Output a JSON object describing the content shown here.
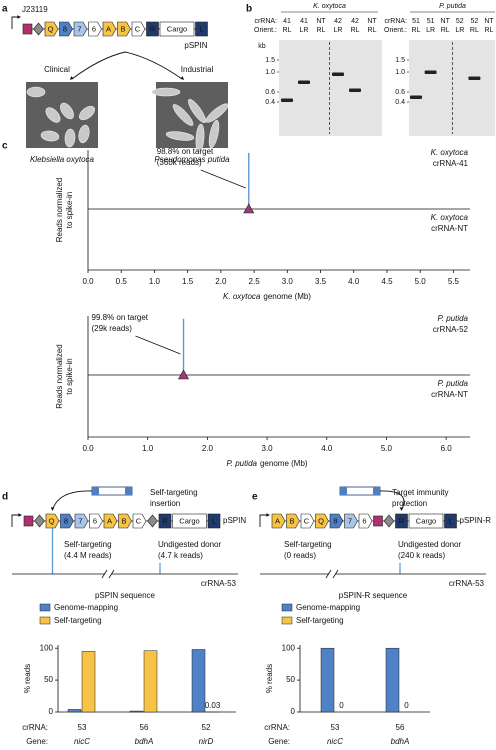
{
  "panel_labels": [
    "a",
    "b",
    "c",
    "d",
    "e"
  ],
  "a": {
    "promoter": "J23119",
    "plasmid": "pSPIN",
    "parts": [
      {
        "shape": "square",
        "color": "#b0306f"
      },
      {
        "shape": "diamond",
        "color": "#8a8a8a"
      },
      {
        "shape": "arrow",
        "label": "Q",
        "color": "#f6c344"
      },
      {
        "shape": "arrow",
        "label": "8",
        "color": "#4f7fc4"
      },
      {
        "shape": "arrow",
        "label": "7",
        "color": "#a8c4e6"
      },
      {
        "shape": "arrow",
        "label": "6",
        "color": "#ffffff"
      },
      {
        "shape": "arrow",
        "label": "A",
        "color": "#f6c344"
      },
      {
        "shape": "arrow",
        "label": "B",
        "color": "#f6c344"
      },
      {
        "shape": "arrow",
        "label": "C",
        "color": "#ffffff"
      },
      {
        "shape": "box",
        "label": "R",
        "color": "#1f3a6b"
      },
      {
        "shape": "box",
        "label": "Cargo",
        "color": "#ffffff"
      },
      {
        "shape": "box",
        "label": "L",
        "color": "#1f3a6b"
      }
    ],
    "hosts": [
      {
        "category": "Clinical",
        "species": "Klebsiella oxytoca"
      },
      {
        "category": "Industrial",
        "species": "Pseudomonas putida"
      }
    ]
  },
  "b": {
    "unit": "kb",
    "row_labels": [
      "crRNA:",
      "Orient.:"
    ],
    "gels": [
      {
        "organism": "K. oxytoca",
        "ladder": [
          "1.5",
          "1.0",
          "0.6",
          "0.4"
        ],
        "crRNA": [
          "41",
          "41",
          "NT",
          "42",
          "42",
          "NT"
        ],
        "orient": [
          "RL",
          "LR",
          "RL",
          "LR",
          "RL",
          "RL"
        ]
      },
      {
        "organism": "P. putida",
        "ladder": [
          "1.5",
          "1.0",
          "0.6",
          "0.4"
        ],
        "crRNA": [
          "51",
          "51",
          "NT",
          "52",
          "52",
          "NT"
        ],
        "orient": [
          "RL",
          "LR",
          "RL",
          "LR",
          "RL",
          "RL"
        ]
      }
    ]
  },
  "chart_data": [
    {
      "type": "stem",
      "ylabel": [
        "Reads normalized",
        "to spike-in"
      ],
      "xlabel": {
        "organism": "K. oxytoca",
        "text": "genome (Mb)"
      },
      "annotation": [
        "98.8% on target",
        "(360k reads)"
      ],
      "tracks": [
        {
          "organism": "K. oxytoca",
          "name": "crRNA-41",
          "x": [
            2.42
          ],
          "values": [
            1
          ]
        },
        {
          "organism": "K. oxytoca",
          "name": "crRNA-NT",
          "x": [],
          "values": []
        }
      ],
      "color": "#5b9bd5",
      "marker_color": "#9b3a75",
      "xlim": [
        0,
        5.75
      ],
      "ylim": [
        0,
        1.05
      ],
      "xticks": [
        {
          "value": 0,
          "label": "0.0"
        },
        0.5,
        {
          "value": 1,
          "label": "1.0"
        },
        1.5,
        {
          "value": 2,
          "label": "2.0"
        },
        2.5,
        {
          "value": 3,
          "label": "3.0"
        },
        3.5,
        {
          "value": 4,
          "label": "4.0"
        },
        4.5,
        {
          "value": 5,
          "label": "5.0"
        },
        5.5
      ]
    },
    {
      "type": "stem",
      "ylabel": [
        "Reads normalized",
        "to spike-in"
      ],
      "xlabel": {
        "organism": "P. putida",
        "text": "genome (Mb)"
      },
      "annotation": [
        "99.8% on target",
        "(29k reads)"
      ],
      "tracks": [
        {
          "organism": "P. putida",
          "name": "crRNA-52",
          "x": [
            1.6
          ],
          "values": [
            1
          ]
        },
        {
          "organism": "P. putida",
          "name": "crRNA-NT",
          "x": [],
          "values": []
        }
      ],
      "color": "#5b9bd5",
      "marker_color": "#9b3a75",
      "xlim": [
        0,
        6.4
      ],
      "ylim": [
        0,
        1.05
      ],
      "xticks": [
        {
          "value": 0,
          "label": "0.0"
        },
        {
          "value": 1,
          "label": "1.0"
        },
        {
          "value": 2,
          "label": "2.0"
        },
        {
          "value": 3,
          "label": "3.0"
        },
        {
          "value": 4,
          "label": "4.0"
        },
        {
          "value": 5,
          "label": "5.0"
        },
        {
          "value": 6,
          "label": "6.0"
        }
      ]
    },
    {
      "type": "bar",
      "ylabel": "% reads",
      "legend": "top-left",
      "category_label": "crRNA:",
      "categories": [
        "53",
        "56",
        "52"
      ],
      "group_label": "Gene:",
      "groups": [
        "nicC",
        "bdhA",
        "nirD"
      ],
      "series": [
        {
          "name": "Genome-mapping",
          "color": "#4f81c7",
          "values": [
            4,
            1.5,
            98
          ]
        },
        {
          "name": "Self-targeting",
          "color": "#f6c344",
          "values": [
            95,
            96,
            0.03
          ]
        }
      ],
      "ylim": [
        0,
        105
      ],
      "yticks": [
        0,
        50,
        100
      ]
    },
    {
      "type": "bar",
      "ylabel": "% reads",
      "legend": "top-left",
      "category_label": "crRNA:",
      "categories": [
        "53",
        "56"
      ],
      "group_label": "Gene:",
      "groups": [
        "nicC",
        "bdhA"
      ],
      "series": [
        {
          "name": "Genome-mapping",
          "color": "#4f81c7",
          "values": [
            100,
            100
          ]
        },
        {
          "name": "Self-targeting",
          "color": "#f6c344",
          "values": [
            0,
            0
          ]
        }
      ],
      "ylim": [
        0,
        105
      ],
      "yticks": [
        0,
        50,
        100
      ]
    }
  ],
  "d": {
    "insertion": [
      "Self-targeting",
      "insertion"
    ],
    "parts": [
      {
        "shape": "square",
        "color": "#b0306f"
      },
      {
        "shape": "diamond",
        "color": "#8a8a8a"
      },
      {
        "shape": "arrow",
        "label": "Q",
        "color": "#f6c344"
      },
      {
        "shape": "arrow",
        "label": "8",
        "color": "#4f7fc4"
      },
      {
        "shape": "arrow",
        "label": "7",
        "color": "#a8c4e6"
      },
      {
        "shape": "arrow",
        "label": "6",
        "color": "#ffffff"
      },
      {
        "shape": "arrow",
        "label": "A",
        "color": "#f6c344"
      },
      {
        "shape": "arrow",
        "label": "B",
        "color": "#f6c344"
      },
      {
        "shape": "arrow",
        "label": "C",
        "color": "#ffffff"
      },
      {
        "shape": "diamond",
        "color": "#8a8a8a"
      },
      {
        "shape": "box",
        "label": "R",
        "color": "#1f3a6b"
      },
      {
        "shape": "box",
        "label": "Cargo",
        "color": "#ffffff"
      },
      {
        "shape": "box",
        "label": "L",
        "color": "#1f3a6b"
      }
    ],
    "plasmid": "pSPIN",
    "self_targeting": [
      "Self-targeting",
      "(4.4 M reads)"
    ],
    "donor": [
      "Undigested donor",
      "(4.7 k reads)"
    ],
    "crRNA": "crRNA-53",
    "sequence": "pSPIN sequence"
  },
  "e": {
    "insertion": [
      "Target immunity",
      "protection"
    ],
    "parts": [
      {
        "shape": "arrow",
        "label": "A",
        "color": "#f6c344"
      },
      {
        "shape": "arrow",
        "label": "B",
        "color": "#f6c344"
      },
      {
        "shape": "arrow",
        "label": "C",
        "color": "#ffffff"
      },
      {
        "shape": "arrow",
        "label": "Q",
        "color": "#f6c344"
      },
      {
        "shape": "arrow",
        "label": "8",
        "color": "#4f7fc4"
      },
      {
        "shape": "arrow",
        "label": "7",
        "color": "#a8c4e6"
      },
      {
        "shape": "arrow",
        "label": "6",
        "color": "#ffffff"
      },
      {
        "shape": "square",
        "color": "#b0306f"
      },
      {
        "shape": "diamond",
        "color": "#8a8a8a"
      },
      {
        "shape": "box",
        "label": "R",
        "color": "#1f3a6b"
      },
      {
        "shape": "box",
        "label": "Cargo",
        "color": "#ffffff"
      },
      {
        "shape": "box",
        "label": "L",
        "color": "#1f3a6b"
      }
    ],
    "plasmid": "pSPIN-R",
    "self_targeting": [
      "Self-targeting",
      "(0 reads)"
    ],
    "donor": [
      "Undigested donor",
      "(240 k reads)"
    ],
    "crRNA": "crRNA-53",
    "sequence": "pSPIN-R sequence"
  }
}
